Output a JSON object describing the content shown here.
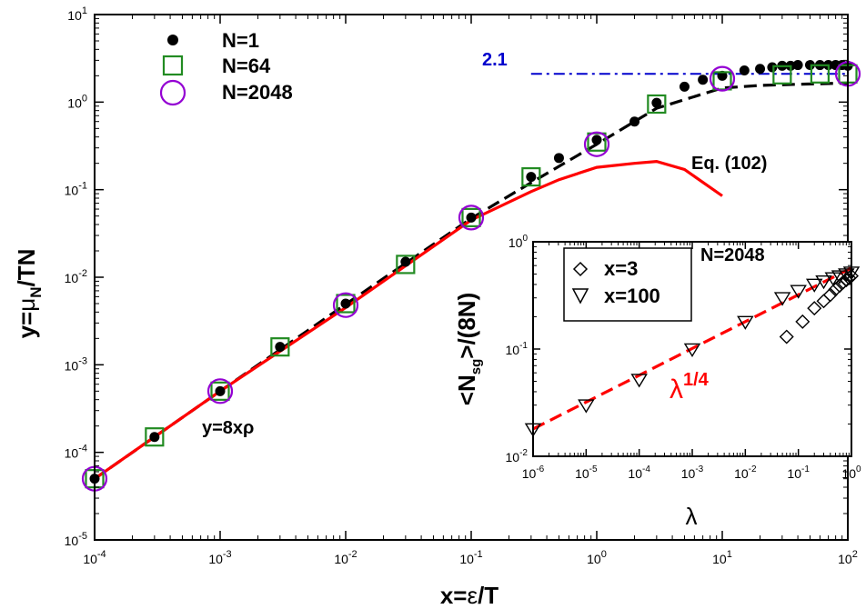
{
  "chart_data": [
    {
      "type": "scatter",
      "title": "",
      "xlabel": {
        "main": "x=",
        "sym": "ε",
        "rest": "/T"
      },
      "ylabel": {
        "main": "y=",
        "sym": "μ",
        "sub": "N",
        "rest": "/TN"
      },
      "x_scale": "log",
      "y_scale": "log",
      "xlim": [
        0.0001,
        100
      ],
      "ylim": [
        1e-05,
        10
      ],
      "grid": false,
      "legend_position": "top-left",
      "x_ticks": [
        {
          "base": "10",
          "exp": "-4",
          "value": 0.0001
        },
        {
          "base": "10",
          "exp": "-3",
          "value": 0.001
        },
        {
          "base": "10",
          "exp": "-2",
          "value": 0.01
        },
        {
          "base": "10",
          "exp": "-1",
          "value": 0.1
        },
        {
          "base": "10",
          "exp": "0",
          "value": 1
        },
        {
          "base": "10",
          "exp": "1",
          "value": 10
        },
        {
          "base": "10",
          "exp": "2",
          "value": 100
        }
      ],
      "y_ticks": [
        {
          "base": "10",
          "exp": "-5",
          "value": 1e-05
        },
        {
          "base": "10",
          "exp": "-4",
          "value": 0.0001
        },
        {
          "base": "10",
          "exp": "-3",
          "value": 0.001
        },
        {
          "base": "10",
          "exp": "-2",
          "value": 0.01
        },
        {
          "base": "10",
          "exp": "-1",
          "value": 0.1
        },
        {
          "base": "10",
          "exp": "0",
          "value": 1
        },
        {
          "base": "10",
          "exp": "1",
          "value": 10
        }
      ],
      "series": [
        {
          "name": "N=1",
          "marker": "filled-circle",
          "color": "#000000",
          "x": [
            0.0001,
            0.0003,
            0.001,
            0.003,
            0.01,
            0.03,
            0.1,
            0.3,
            0.5,
            1,
            2,
            3,
            5,
            7,
            10,
            15,
            20,
            25,
            30,
            35,
            40,
            50,
            60,
            70,
            80,
            90,
            100
          ],
          "y": [
            5e-05,
            0.00015,
            0.0005,
            0.0016,
            0.005,
            0.015,
            0.048,
            0.14,
            0.23,
            0.37,
            0.6,
            0.98,
            1.5,
            1.8,
            2.0,
            2.3,
            2.4,
            2.5,
            2.6,
            2.6,
            2.65,
            2.65,
            2.65,
            2.65,
            2.65,
            2.65,
            2.6
          ]
        },
        {
          "name": "N=64",
          "marker": "open-square",
          "color": "#228b22",
          "x": [
            0.0001,
            0.0003,
            0.001,
            0.003,
            0.01,
            0.03,
            0.1,
            0.3,
            1,
            3,
            10,
            30,
            60,
            100
          ],
          "y": [
            5e-05,
            0.00015,
            0.0005,
            0.0016,
            0.005,
            0.014,
            0.048,
            0.14,
            0.35,
            0.95,
            1.75,
            2.05,
            2.1,
            2.1
          ]
        },
        {
          "name": "N=2048",
          "marker": "open-circle",
          "color": "#9400d3",
          "x": [
            0.0001,
            0.001,
            0.01,
            0.1,
            1,
            10,
            100
          ],
          "y": [
            5e-05,
            0.0005,
            0.0048,
            0.048,
            0.33,
            1.85,
            2.1
          ]
        }
      ],
      "curves": [
        {
          "label": "y=8xρ",
          "style": "dashed",
          "color": "#000000",
          "x": [
            0.0001,
            0.001,
            0.01,
            0.1,
            0.3,
            1,
            3,
            10,
            20,
            40,
            100
          ],
          "y": [
            5e-05,
            0.0005,
            0.0049,
            0.047,
            0.12,
            0.33,
            0.85,
            1.45,
            1.55,
            1.6,
            1.65
          ]
        },
        {
          "label": "Eq. (102)",
          "style": "solid",
          "color": "#ff0000",
          "x": [
            0.0001,
            0.001,
            0.01,
            0.1,
            0.3,
            0.5,
            1,
            2,
            3,
            5,
            10
          ],
          "y": [
            5e-05,
            0.0005,
            0.0045,
            0.045,
            0.095,
            0.13,
            0.18,
            0.2,
            0.21,
            0.17,
            0.085
          ]
        },
        {
          "label": "2.1",
          "style": "dash-dot",
          "color": "#0000cd",
          "x": [
            0.3,
            100
          ],
          "y": [
            2.1,
            2.1
          ]
        }
      ]
    },
    {
      "type": "scatter",
      "title": "",
      "annotation": "N=2048",
      "xlabel": {
        "main": "λ"
      },
      "ylabel": {
        "main": "<N",
        "sub": "sg",
        "rest": ">/(8N)"
      },
      "x_scale": "log",
      "y_scale": "log",
      "xlim": [
        1e-06,
        1
      ],
      "ylim": [
        0.01,
        1
      ],
      "grid": false,
      "legend_position": "top-left",
      "x_ticks": [
        {
          "base": "10",
          "exp": "-6",
          "value": 1e-06
        },
        {
          "base": "10",
          "exp": "-5",
          "value": 1e-05
        },
        {
          "base": "10",
          "exp": "-4",
          "value": 0.0001
        },
        {
          "base": "10",
          "exp": "-3",
          "value": 0.001
        },
        {
          "base": "10",
          "exp": "-2",
          "value": 0.01
        },
        {
          "base": "10",
          "exp": "-1",
          "value": 0.1
        },
        {
          "base": "10",
          "exp": "0",
          "value": 1
        }
      ],
      "y_ticks": [
        {
          "base": "10",
          "exp": "-2",
          "value": 0.01
        },
        {
          "base": "10",
          "exp": "-1",
          "value": 0.1
        },
        {
          "base": "10",
          "exp": "0",
          "value": 1
        }
      ],
      "series": [
        {
          "name": "x=3",
          "marker": "open-diamond",
          "color": "#000000",
          "x": [
            0.06,
            0.12,
            0.2,
            0.3,
            0.4,
            0.5,
            0.6,
            0.7,
            0.8,
            0.9,
            1.0
          ],
          "y": [
            0.13,
            0.18,
            0.24,
            0.28,
            0.32,
            0.36,
            0.39,
            0.42,
            0.44,
            0.46,
            0.48
          ]
        },
        {
          "name": "x=100",
          "marker": "open-triangle-down",
          "color": "#000000",
          "x": [
            1e-06,
            1e-05,
            0.0001,
            0.001,
            0.01,
            0.05,
            0.1,
            0.2,
            0.3,
            0.45,
            0.6,
            0.8,
            1.0
          ],
          "y": [
            0.018,
            0.03,
            0.052,
            0.1,
            0.18,
            0.3,
            0.35,
            0.4,
            0.43,
            0.46,
            0.48,
            0.5,
            0.52
          ]
        }
      ],
      "curves": [
        {
          "label": "λ^1/4",
          "style": "dashed",
          "color": "#ff0000",
          "x": [
            1e-06,
            1
          ],
          "y": [
            0.018,
            0.57
          ]
        }
      ],
      "fit_label": {
        "base": "λ",
        "exp": "1/4"
      }
    }
  ]
}
